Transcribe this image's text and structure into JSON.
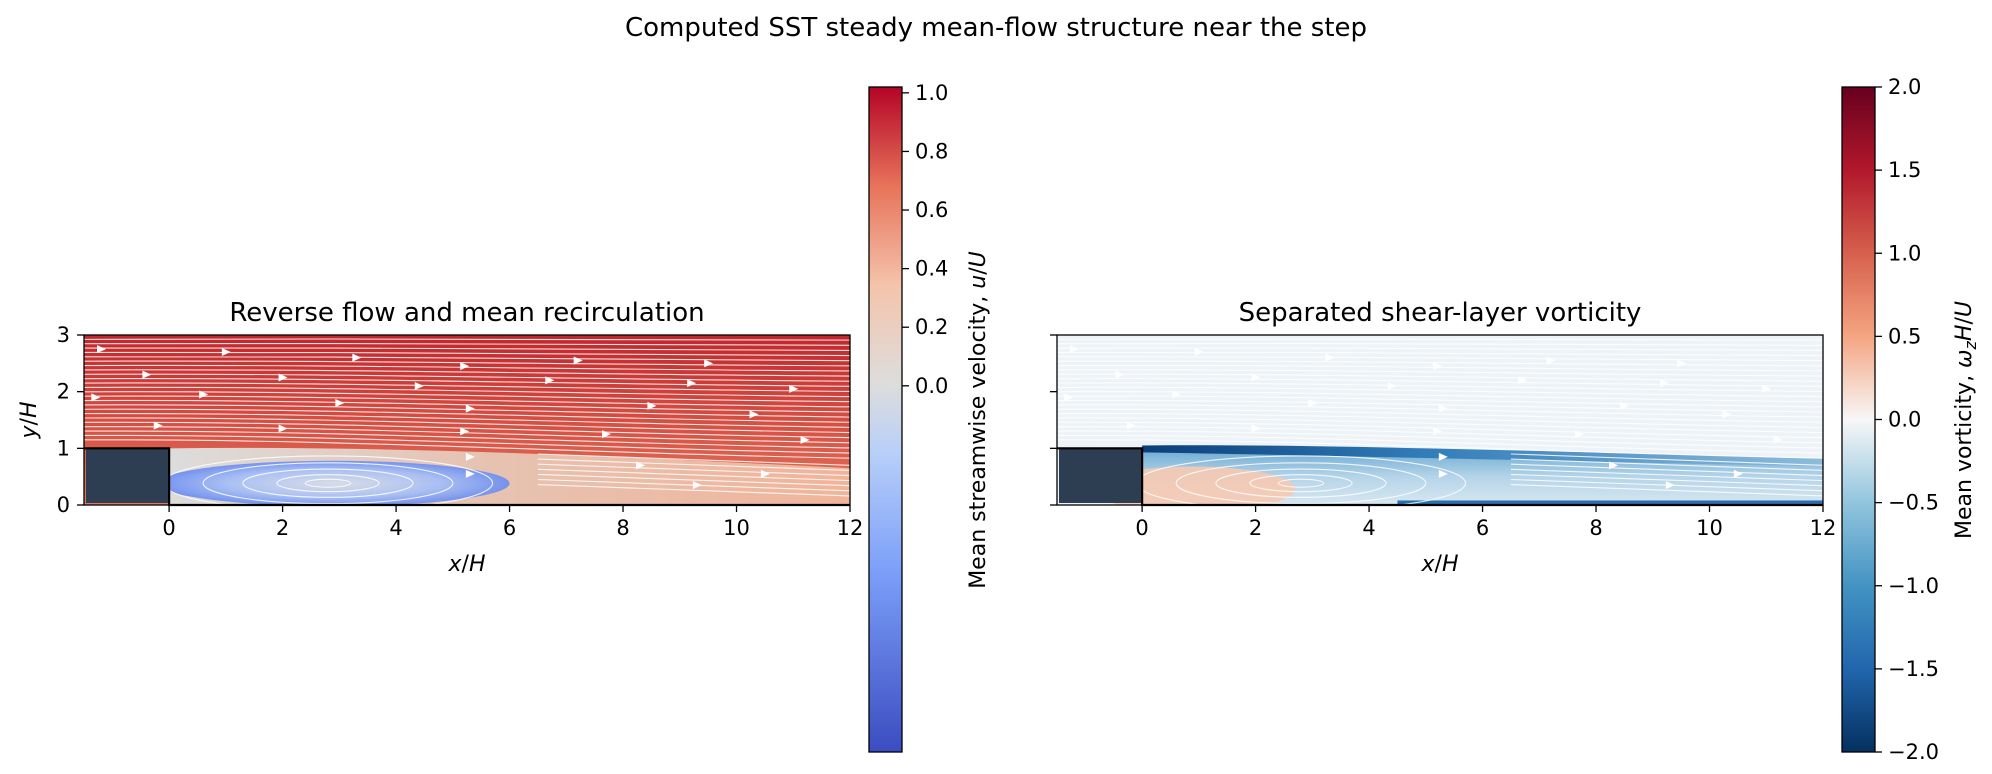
{
  "figure": {
    "title": "Computed SST steady mean-flow structure near the step"
  },
  "colors": {
    "step_block": "#2e3e52",
    "streamline": "#ffffff",
    "axis": "#000000"
  },
  "chart_data": [
    {
      "type": "heatmap",
      "title": "Reverse flow and mean recirculation",
      "xlabel": "x/H",
      "ylabel": "y/H",
      "xlim": [
        -1.5,
        12
      ],
      "ylim": [
        0,
        3
      ],
      "xticks": [
        0,
        2,
        4,
        6,
        8,
        10,
        12
      ],
      "yticks": [
        0,
        1,
        2,
        3
      ],
      "field": "mean streamwise velocity",
      "colormap": "coolwarm",
      "step": {
        "x": [
          -1.5,
          0
        ],
        "y": [
          0,
          1
        ]
      },
      "recirculation_vortex_center": {
        "x": 2.8,
        "y": 0.55
      },
      "colorbar": {
        "label": "Mean streamwise velocity, u/U",
        "vmin": -1.25,
        "vmax": 1.02,
        "center": 0.0,
        "ticks": [
          0.0,
          0.2,
          0.4,
          0.6,
          0.8,
          1.0
        ],
        "tick_labels": [
          "0.0",
          "0.2",
          "0.4",
          "0.6",
          "0.8",
          "1.0"
        ]
      },
      "streamlines": true
    },
    {
      "type": "heatmap",
      "title": "Separated shear-layer vorticity",
      "xlabel": "x/H",
      "ylabel": "",
      "xlim": [
        -1.5,
        12
      ],
      "ylim": [
        0,
        3
      ],
      "xticks": [
        0,
        2,
        4,
        6,
        8,
        10,
        12
      ],
      "yticks": [
        0,
        1,
        2,
        3
      ],
      "field": "mean vorticity",
      "colormap": "RdBu_r",
      "step": {
        "x": [
          -1.5,
          0
        ],
        "y": [
          0,
          1
        ]
      },
      "recirculation_vortex_center": {
        "x": 2.8,
        "y": 0.55
      },
      "colorbar": {
        "label": "Mean vorticity, ω_z H/U",
        "vmin": -2.0,
        "vmax": 2.0,
        "ticks": [
          -2.0,
          -1.5,
          -1.0,
          -0.5,
          0.0,
          0.5,
          1.0,
          1.5,
          2.0
        ],
        "tick_labels": [
          "−2.0",
          "−1.5",
          "−1.0",
          "−0.5",
          "0.0",
          "0.5",
          "1.0",
          "1.5",
          "2.0"
        ]
      },
      "streamlines": true
    }
  ]
}
